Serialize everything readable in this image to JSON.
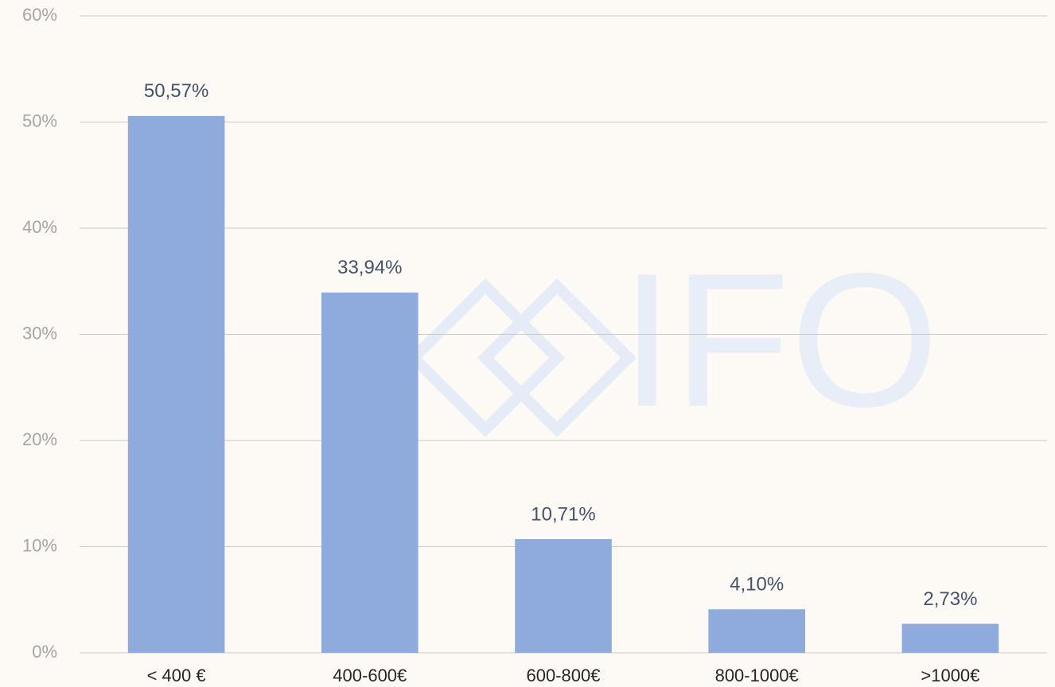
{
  "chart_data": {
    "type": "bar",
    "watermark": "IFO",
    "categories": [
      "< 400 €",
      "400-600€",
      "600-800€",
      "800-1000€",
      ">1000€"
    ],
    "values": [
      50.57,
      33.94,
      10.71,
      4.1,
      2.73
    ],
    "value_labels": [
      "50,57%",
      "33,94%",
      "10,71%",
      "4,10%",
      "2,73%"
    ],
    "color": "#8faadc",
    "ylim": [
      0,
      60
    ],
    "yticks": [
      {
        "value": 0,
        "label": "0%"
      },
      {
        "value": 10,
        "label": "10%"
      },
      {
        "value": 20,
        "label": "20%"
      },
      {
        "value": 30,
        "label": "30%"
      },
      {
        "value": 40,
        "label": "40%"
      },
      {
        "value": 50,
        "label": "50%"
      },
      {
        "value": 60,
        "label": "60%"
      }
    ],
    "grid": true
  }
}
